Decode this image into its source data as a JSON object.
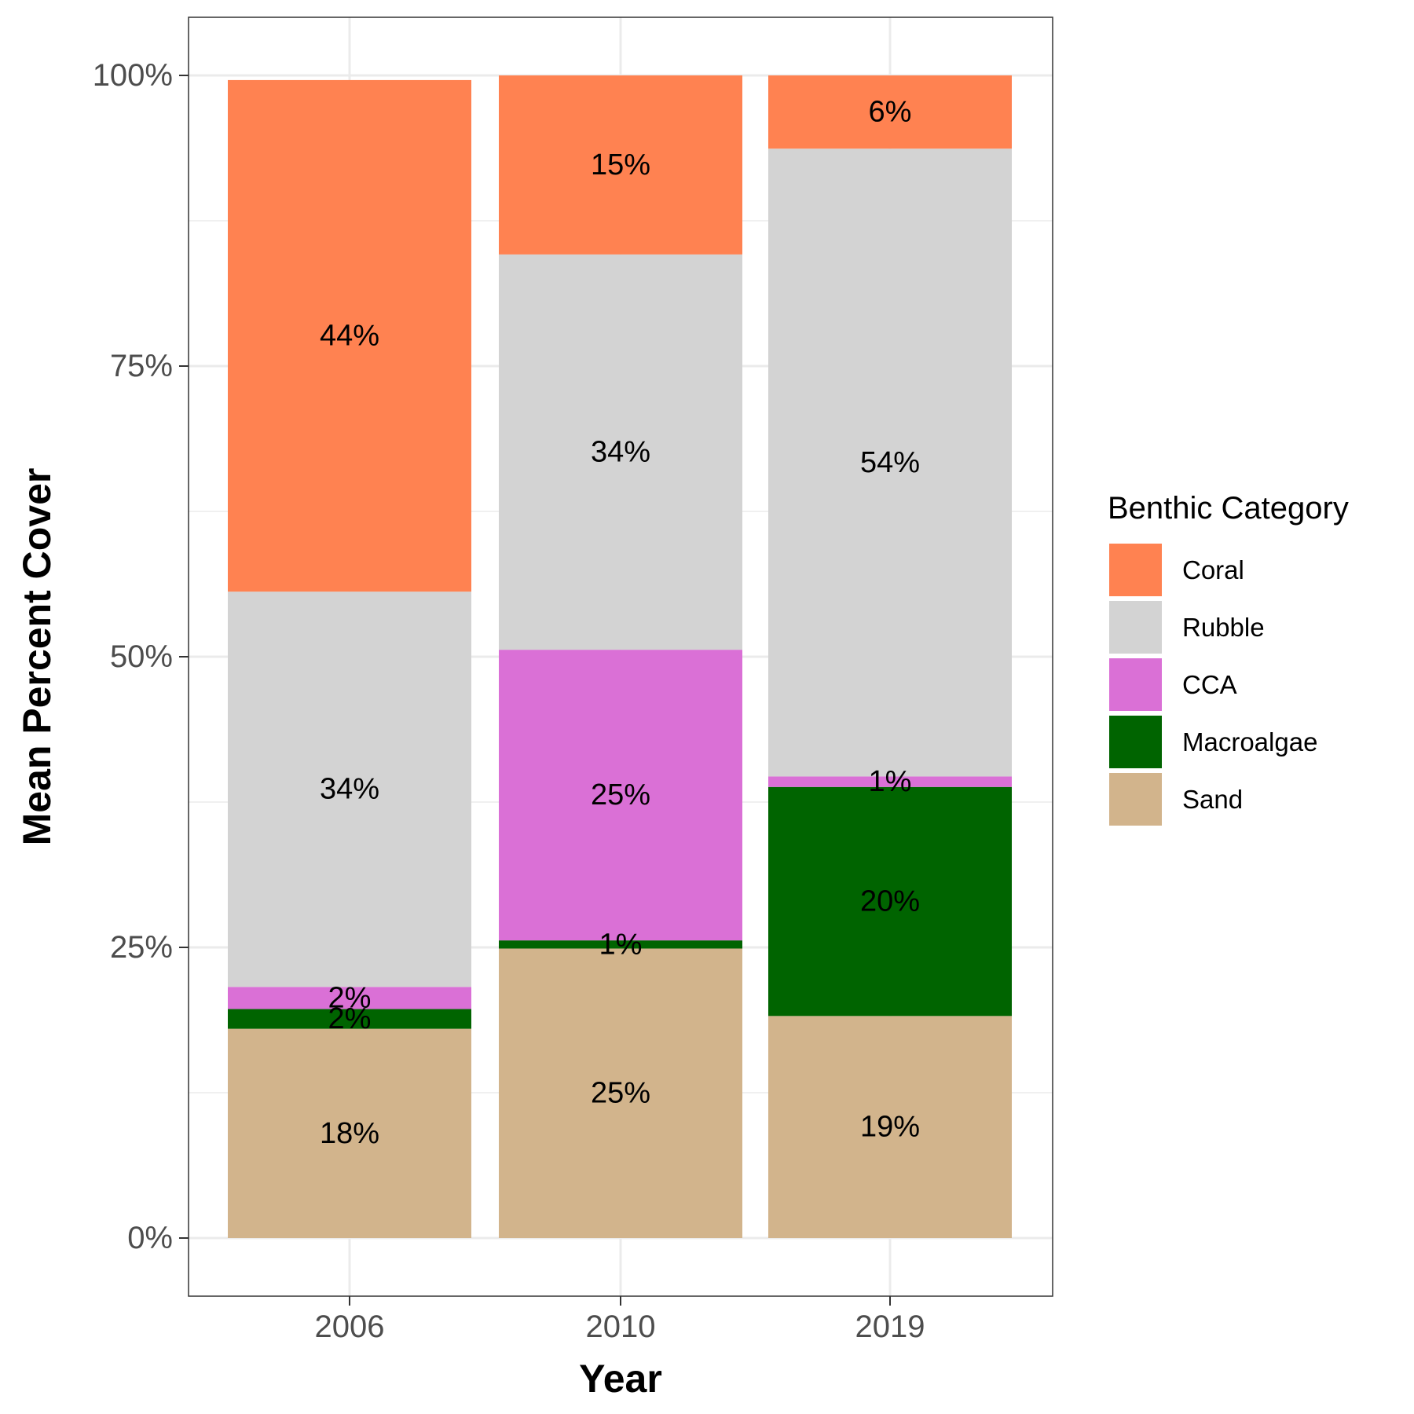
{
  "chart_data": {
    "type": "bar",
    "stacked": true,
    "title": "",
    "xlabel": "Year",
    "ylabel": "Mean Percent Cover",
    "categories": [
      "2006",
      "2010",
      "2019"
    ],
    "ylim": [
      0,
      1
    ],
    "yticks": [
      0,
      0.25,
      0.5,
      0.75,
      1.0
    ],
    "ytick_labels": [
      "0%",
      "25%",
      "50%",
      "75%",
      "100%"
    ],
    "grid": true,
    "legend": {
      "title": "Benthic Category",
      "position": "right"
    },
    "stack_order_bottom_to_top": [
      "Sand",
      "Macroalgae",
      "CCA",
      "Rubble",
      "Coral"
    ],
    "series": [
      {
        "name": "Coral",
        "color": "#FF8251",
        "values": [
          0.44,
          0.154,
          0.063
        ],
        "labels": [
          "44%",
          "15%",
          "6%"
        ]
      },
      {
        "name": "Rubble",
        "color": "#D3D3D3",
        "values": [
          0.34,
          0.34,
          0.54
        ],
        "labels": [
          "34%",
          "34%",
          "54%"
        ]
      },
      {
        "name": "CCA",
        "color": "#DA70D6",
        "values": [
          0.019,
          0.25,
          0.009
        ],
        "labels": [
          "2%",
          "25%",
          "1%"
        ]
      },
      {
        "name": "Macroalgae",
        "color": "#006400",
        "values": [
          0.017,
          0.007,
          0.197
        ],
        "labels": [
          "2%",
          "1%",
          "20%"
        ]
      },
      {
        "name": "Sand",
        "color": "#D2B48C",
        "values": [
          0.18,
          0.249,
          0.191
        ],
        "labels": [
          "18%",
          "25%",
          "19%"
        ]
      }
    ]
  }
}
